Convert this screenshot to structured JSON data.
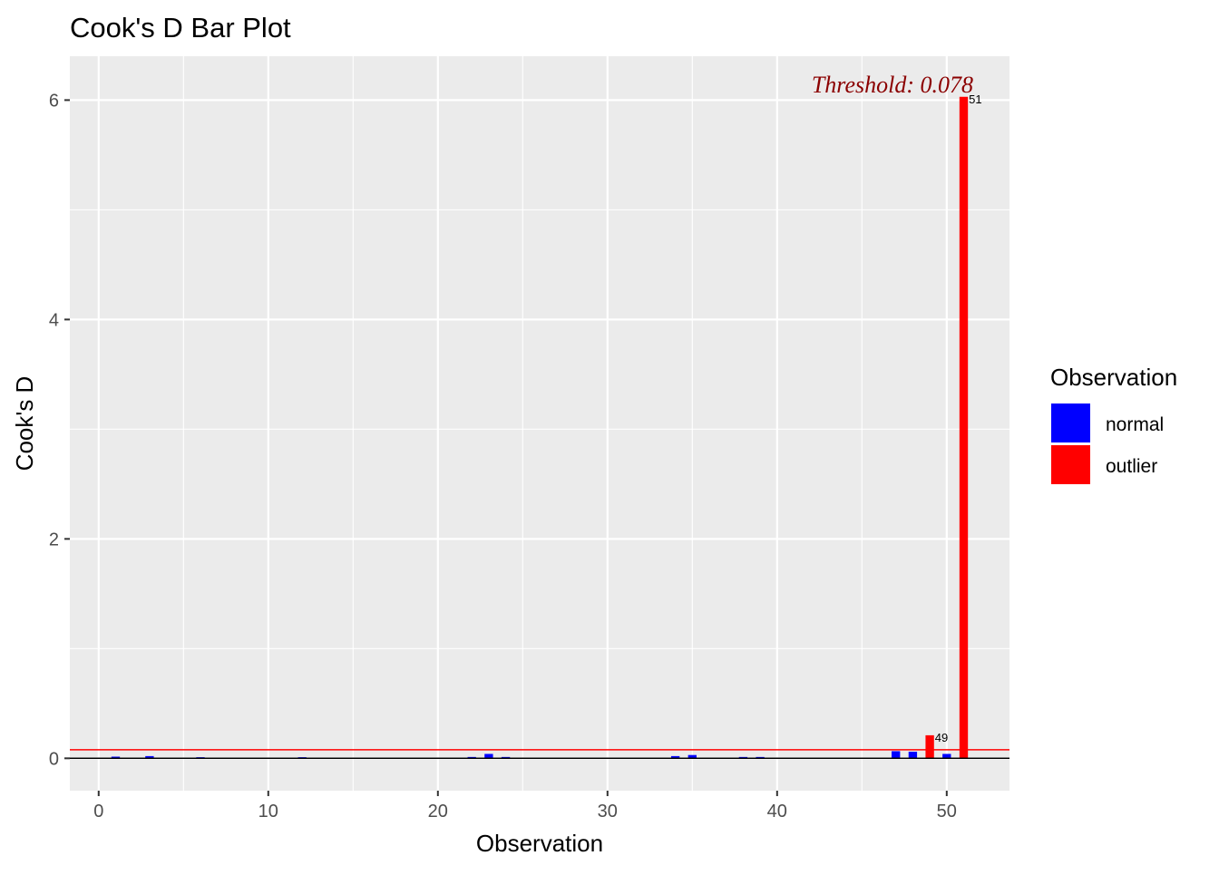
{
  "chart_data": {
    "type": "bar",
    "title": "Cook's D Bar Plot",
    "xlabel": "Observation",
    "ylabel": "Cook's D",
    "xlim": [
      -1.7,
      53.7
    ],
    "ylim": [
      -0.295,
      6.4
    ],
    "x_ticks": [
      0,
      10,
      20,
      30,
      40,
      50
    ],
    "x_tick_labels": [
      "0",
      "10",
      "20",
      "30",
      "40",
      "50"
    ],
    "y_ticks": [
      0,
      2,
      4,
      6
    ],
    "y_tick_labels": [
      "0",
      "2",
      "4",
      "6"
    ],
    "grid": true,
    "threshold": 0.078,
    "threshold_label": "Threshold: 0.078",
    "colors": {
      "normal": "#0000FF",
      "outlier": "#FF0000",
      "threshold": "#FF0000",
      "threshold_text": "#8B0000",
      "panel": "#EBEBEB",
      "grid": "#FFFFFF"
    },
    "legend": {
      "title": "Observation",
      "position": "right",
      "entries": [
        {
          "label": "normal",
          "color": "#0000FF"
        },
        {
          "label": "outlier",
          "color": "#FF0000"
        }
      ]
    },
    "series": [
      {
        "name": "normal",
        "points": [
          {
            "x": 1,
            "y": 0.015
          },
          {
            "x": 3,
            "y": 0.02
          },
          {
            "x": 6,
            "y": 0.01
          },
          {
            "x": 12,
            "y": 0.01
          },
          {
            "x": 22,
            "y": 0.012
          },
          {
            "x": 23,
            "y": 0.04
          },
          {
            "x": 24,
            "y": 0.012
          },
          {
            "x": 34,
            "y": 0.02
          },
          {
            "x": 35,
            "y": 0.03
          },
          {
            "x": 38,
            "y": 0.012
          },
          {
            "x": 39,
            "y": 0.012
          },
          {
            "x": 47,
            "y": 0.065
          },
          {
            "x": 48,
            "y": 0.06
          },
          {
            "x": 50,
            "y": 0.04
          }
        ]
      },
      {
        "name": "outlier",
        "points": [
          {
            "x": 49,
            "y": 0.21,
            "label": "49"
          },
          {
            "x": 51,
            "y": 6.03,
            "label": "51"
          }
        ]
      }
    ]
  }
}
